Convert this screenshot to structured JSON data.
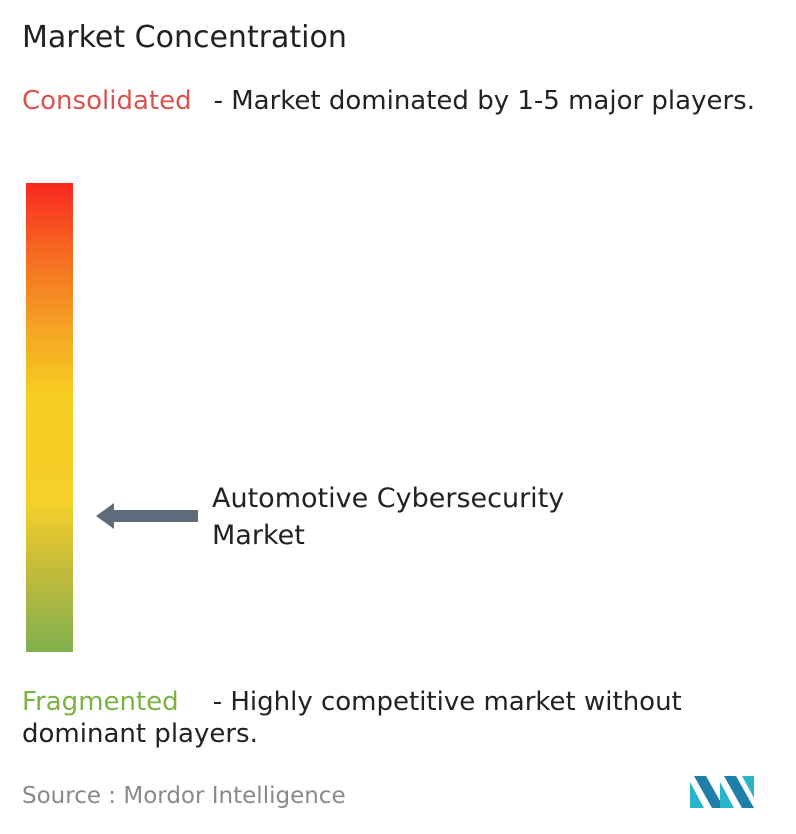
{
  "title": "Market Concentration",
  "top": {
    "label": "Consolidated",
    "description": "- Market dominated by 1-5 major players."
  },
  "marker": {
    "label": "Automotive Cybersecurity Market"
  },
  "bottom": {
    "label": "Fragmented",
    "description": "- Highly competitive market without dominant players."
  },
  "source": "Source :  Mordor Intelligence"
}
